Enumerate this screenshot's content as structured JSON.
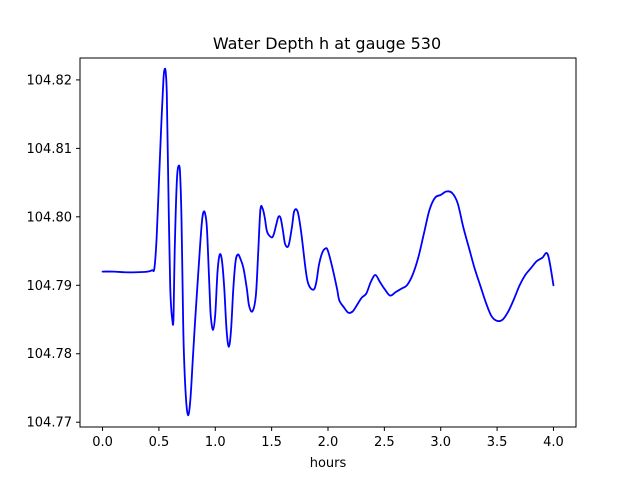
{
  "chart_data": {
    "type": "line",
    "title": "Water Depth h at gauge 530",
    "xlabel": "hours",
    "ylabel": "",
    "xlim": [
      -0.2,
      4.2
    ],
    "ylim": [
      104.7693,
      104.8232
    ],
    "x_ticks": [
      0.0,
      0.5,
      1.0,
      1.5,
      2.0,
      2.5,
      3.0,
      3.5,
      4.0
    ],
    "x_tick_labels": [
      "0.0",
      "0.5",
      "1.0",
      "1.5",
      "2.0",
      "2.5",
      "3.0",
      "3.5",
      "4.0"
    ],
    "y_ticks": [
      104.77,
      104.78,
      104.79,
      104.8,
      104.81,
      104.82
    ],
    "y_tick_labels": [
      "104.77",
      "104.78",
      "104.79",
      "104.80",
      "104.81",
      "104.82"
    ],
    "grid": false,
    "series": [
      {
        "color": "#0000ff",
        "x": [
          0.0,
          0.1,
          0.2,
          0.3,
          0.4,
          0.44,
          0.46,
          0.48,
          0.5,
          0.52,
          0.54,
          0.55,
          0.56,
          0.57,
          0.58,
          0.6,
          0.62,
          0.63,
          0.64,
          0.66,
          0.68,
          0.69,
          0.7,
          0.71,
          0.72,
          0.74,
          0.76,
          0.78,
          0.8,
          0.82,
          0.85,
          0.88,
          0.9,
          0.92,
          0.93,
          0.94,
          0.95,
          0.96,
          0.98,
          1.0,
          1.02,
          1.04,
          1.06,
          1.08,
          1.1,
          1.12,
          1.14,
          1.16,
          1.18,
          1.2,
          1.22,
          1.25,
          1.28,
          1.3,
          1.33,
          1.36,
          1.38,
          1.4,
          1.42,
          1.44,
          1.46,
          1.5,
          1.52,
          1.54,
          1.56,
          1.58,
          1.6,
          1.62,
          1.65,
          1.68,
          1.7,
          1.73,
          1.76,
          1.8,
          1.82,
          1.85,
          1.88,
          1.9,
          1.92,
          1.95,
          1.98,
          2.0,
          2.04,
          2.08,
          2.1,
          2.14,
          2.18,
          2.22,
          2.26,
          2.3,
          2.34,
          2.38,
          2.42,
          2.46,
          2.5,
          2.55,
          2.6,
          2.65,
          2.7,
          2.75,
          2.8,
          2.85,
          2.9,
          2.95,
          3.0,
          3.05,
          3.1,
          3.15,
          3.2,
          3.25,
          3.3,
          3.35,
          3.4,
          3.45,
          3.5,
          3.55,
          3.6,
          3.65,
          3.7,
          3.75,
          3.8,
          3.85,
          3.9,
          3.95,
          4.0
        ],
        "y": [
          104.792,
          104.792,
          104.7919,
          104.7919,
          104.792,
          104.7922,
          104.7925,
          104.797,
          104.805,
          104.813,
          104.82,
          104.8215,
          104.8212,
          104.818,
          104.808,
          104.79,
          104.7848,
          104.7855,
          104.795,
          104.8055,
          104.8075,
          104.8055,
          104.8,
          104.79,
          104.781,
          104.7735,
          104.771,
          104.7735,
          104.779,
          104.7845,
          104.792,
          104.799,
          104.8008,
          104.7995,
          104.797,
          104.793,
          104.789,
          104.7855,
          104.7835,
          104.7858,
          104.792,
          104.7945,
          104.7935,
          104.7895,
          104.7835,
          104.781,
          104.7835,
          104.7895,
          104.7935,
          104.7945,
          104.794,
          104.7925,
          104.7895,
          104.787,
          104.7862,
          104.7885,
          104.7945,
          104.801,
          104.8012,
          104.7998,
          104.7978,
          104.797,
          104.7975,
          104.7988,
          104.8,
          104.7998,
          104.798,
          104.796,
          104.7958,
          104.7985,
          104.8008,
          104.8008,
          104.798,
          104.7925,
          104.7905,
          104.7895,
          104.7895,
          104.7908,
          104.793,
          104.7948,
          104.7954,
          104.795,
          104.7925,
          104.7895,
          104.7878,
          104.7868,
          104.786,
          104.7862,
          104.7872,
          104.7882,
          104.7888,
          104.7905,
          104.7915,
          104.7905,
          104.7895,
          104.7885,
          104.789,
          104.7895,
          104.79,
          104.7915,
          104.794,
          104.7975,
          104.801,
          104.8028,
          104.8032,
          104.8037,
          104.8035,
          104.802,
          104.7985,
          104.7955,
          104.7925,
          104.79,
          104.7875,
          104.7855,
          104.7848,
          104.785,
          104.7862,
          104.788,
          104.79,
          104.7915,
          104.7925,
          104.7935,
          104.794,
          104.7945,
          104.79
        ]
      }
    ]
  }
}
